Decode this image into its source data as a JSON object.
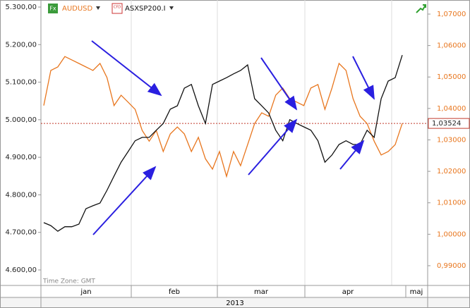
{
  "chart_data": {
    "type": "line",
    "legend": [
      "AUDUSD",
      "ASXSP200.I"
    ],
    "months": [
      "jan",
      "feb",
      "mar",
      "apr",
      "maj"
    ],
    "year": "2013",
    "time_zone": "Time Zone: GMT",
    "series": [
      {
        "name": "AUDUSD",
        "color": "#e8761e",
        "axis": "y2",
        "values": [
          1.0409,
          1.0521,
          1.0532,
          1.0565,
          1.0554,
          1.0543,
          1.0532,
          1.0521,
          1.0543,
          1.0498,
          1.0409,
          1.0442,
          1.042,
          1.0397,
          1.033,
          1.0296,
          1.033,
          1.0263,
          1.0319,
          1.0341,
          1.0319,
          1.0263,
          1.0308,
          1.024,
          1.0207,
          1.0263,
          1.0184,
          1.0263,
          1.0218,
          1.0285,
          1.0352,
          1.0386,
          1.0375,
          1.0442,
          1.0465,
          1.0431,
          1.042,
          1.0409,
          1.0465,
          1.0476,
          1.0397,
          1.0465,
          1.0543,
          1.0521,
          1.0431,
          1.0375,
          1.0352,
          1.0296,
          1.0252,
          1.0263,
          1.0285,
          1.03524
        ]
      },
      {
        "name": "ASXSP200.I",
        "color": "#111111",
        "axis": "y",
        "values": [
          4726,
          4718,
          4703,
          4715,
          4715,
          4722,
          4763,
          4771,
          4778,
          4812,
          4850,
          4887,
          4915,
          4944,
          4953,
          4953,
          4972,
          4990,
          5028,
          5037,
          5084,
          5094,
          5037,
          4990,
          5094,
          5103,
          5112,
          5122,
          5131,
          5146,
          5056,
          5037,
          5018,
          4972,
          4944,
          5000,
          4990,
          4981,
          4972,
          4944,
          4887,
          4906,
          4934,
          4944,
          4934,
          4934,
          4972,
          4953,
          5056,
          5103,
          5112,
          5172
        ]
      }
    ],
    "ylim": [
      4558.7,
      5318.75
    ],
    "yticks": [
      {
        "value": 4600,
        "label": "4.600,00"
      },
      {
        "value": 4700,
        "label": "4.700,00"
      },
      {
        "value": 4800,
        "label": "4.800,00"
      },
      {
        "value": 4900,
        "label": "4.900,00"
      },
      {
        "value": 5000,
        "label": "5.000,00"
      },
      {
        "value": 5100,
        "label": "5.100,00"
      },
      {
        "value": 5200,
        "label": "5.200,00"
      },
      {
        "value": 5300,
        "label": "5.300,00"
      }
    ],
    "y2lim": [
      0.98372,
      1.07448
    ],
    "y2ticks": [
      {
        "value": 0.99,
        "label": "0,99000"
      },
      {
        "value": 1.0,
        "label": "1,00000"
      },
      {
        "value": 1.01,
        "label": "1,01000"
      },
      {
        "value": 1.02,
        "label": "1,02000"
      },
      {
        "value": 1.03,
        "label": "1,03000"
      },
      {
        "value": 1.04,
        "label": "1,04000"
      },
      {
        "value": 1.05,
        "label": "1,05000"
      },
      {
        "value": 1.06,
        "label": "1,06000"
      },
      {
        "value": 1.07,
        "label": "1,07000"
      }
    ],
    "last_value": {
      "value": 1.03524,
      "label": "1,03524"
    }
  }
}
